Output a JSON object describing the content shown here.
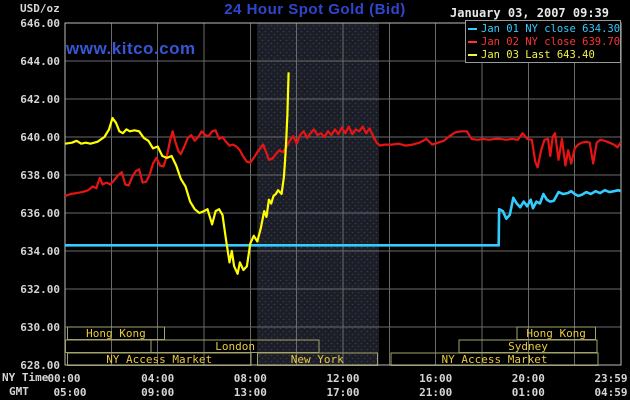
{
  "header": {
    "unit_label": "USD/oz",
    "title": "24 Hour Spot Gold (Bid)",
    "datetime": "January 03, 2007 09:39",
    "watermark": "www.kitco.com"
  },
  "legend": {
    "items": [
      {
        "label": "Jan 01 NY close 634.30",
        "color": "#33ccff"
      },
      {
        "label": "Jan 02 NY close 639.70",
        "color": "#ff3333"
      },
      {
        "label": "Jan 03 Last 643.40",
        "color": "#f2f24a"
      }
    ]
  },
  "axes": {
    "y_ticks": [
      "646.00",
      "644.00",
      "642.00",
      "640.00",
      "638.00",
      "636.00",
      "634.00",
      "632.00",
      "630.00",
      "628.00"
    ],
    "x_tick_hours": [
      0,
      4,
      8,
      12,
      16,
      20,
      23.98
    ],
    "rows": [
      {
        "title": "NY Time",
        "labels": [
          "00:00",
          "04:00",
          "08:00",
          "12:00",
          "16:00",
          "20:00",
          "23:59"
        ]
      },
      {
        "title": "GMT",
        "labels": [
          "05:00",
          "09:00",
          "13:00",
          "17:00",
          "21:00",
          "01:00",
          "04:59"
        ]
      }
    ]
  },
  "sessions": {
    "rows": [
      [
        {
          "label": "Hong Kong",
          "start": 0.1,
          "end": 4.3
        },
        {
          "label": "Hong Kong",
          "start": 19.5,
          "end": 22.9
        }
      ],
      [
        {
          "label": "",
          "start": 0.02,
          "end": 3.72
        },
        {
          "label": "London",
          "start": 3.72,
          "end": 10.97
        },
        {
          "label": "Sydney",
          "start": 17.0,
          "end": 22.97
        }
      ],
      [
        {
          "label": "NY Access Market",
          "start": 0.1,
          "end": 8.03
        },
        {
          "label": "New York",
          "start": 8.3,
          "end": 13.48
        },
        {
          "label": "NY Access Market",
          "start": 14.08,
          "end": 23.0
        }
      ]
    ]
  },
  "colors": {
    "background": "#000000",
    "grid": "#6a6a6a",
    "plot_border": "#bdbdbd",
    "title_blue": "#2f46cf",
    "watermark_blue": "#3656d6",
    "session_border": "#a3a369",
    "session_text": "#e8c93f",
    "band_fill": "#1c1e24",
    "band_dot": "#2f3a66",
    "tick_text": "#d6d6d6"
  },
  "chart_data": {
    "type": "line",
    "title": "24 Hour Spot Gold (Bid)",
    "ylabel": "USD/oz",
    "ylim": [
      628,
      646
    ],
    "y_step": 2,
    "xlim_hours": [
      0,
      24
    ],
    "x_step_hours": 2,
    "grid": true,
    "legend_position": "top-right",
    "highlight_band_hours": [
      8.29,
      13.55
    ],
    "series": [
      {
        "name": "Jan 01 NY close 634.30",
        "color": "#33ccff",
        "width": 2.6,
        "points": [
          [
            0,
            634.3
          ],
          [
            18.72,
            634.3
          ],
          [
            18.74,
            636.2
          ],
          [
            18.9,
            636.1
          ],
          [
            19.05,
            635.7
          ],
          [
            19.2,
            635.9
          ],
          [
            19.35,
            636.8
          ],
          [
            19.5,
            636.5
          ],
          [
            19.65,
            636.3
          ],
          [
            19.8,
            636.6
          ],
          [
            19.95,
            636.35
          ],
          [
            20.1,
            636.7
          ],
          [
            20.2,
            636.25
          ],
          [
            20.35,
            636.6
          ],
          [
            20.5,
            636.5
          ],
          [
            20.65,
            637.0
          ],
          [
            20.8,
            636.7
          ],
          [
            20.95,
            636.6
          ],
          [
            21.1,
            636.65
          ],
          [
            21.3,
            637.1
          ],
          [
            21.5,
            637.0
          ],
          [
            21.7,
            637.05
          ],
          [
            21.85,
            637.15
          ],
          [
            22.0,
            637.0
          ],
          [
            22.15,
            636.9
          ],
          [
            22.3,
            636.95
          ],
          [
            22.5,
            637.1
          ],
          [
            22.7,
            637.0
          ],
          [
            22.9,
            637.15
          ],
          [
            23.1,
            637.05
          ],
          [
            23.3,
            637.2
          ],
          [
            23.5,
            637.1
          ],
          [
            23.7,
            637.15
          ],
          [
            23.9,
            637.2
          ],
          [
            23.98,
            637.15
          ]
        ]
      },
      {
        "name": "Jan 02 NY close 639.70",
        "color": "#e81414",
        "width": 2.2,
        "points": [
          [
            0,
            636.9
          ],
          [
            0.25,
            637.0
          ],
          [
            0.5,
            637.05
          ],
          [
            0.75,
            637.1
          ],
          [
            1.0,
            637.2
          ],
          [
            1.2,
            637.4
          ],
          [
            1.35,
            637.3
          ],
          [
            1.5,
            637.85
          ],
          [
            1.62,
            637.5
          ],
          [
            1.8,
            637.6
          ],
          [
            1.95,
            637.5
          ],
          [
            2.1,
            637.7
          ],
          [
            2.3,
            638.0
          ],
          [
            2.45,
            638.15
          ],
          [
            2.6,
            637.5
          ],
          [
            2.75,
            637.45
          ],
          [
            2.9,
            637.9
          ],
          [
            3.05,
            638.2
          ],
          [
            3.2,
            638.3
          ],
          [
            3.35,
            637.6
          ],
          [
            3.5,
            637.65
          ],
          [
            3.65,
            638.0
          ],
          [
            3.8,
            638.6
          ],
          [
            3.95,
            638.9
          ],
          [
            4.1,
            638.5
          ],
          [
            4.25,
            638.45
          ],
          [
            4.4,
            639.0
          ],
          [
            4.55,
            639.9
          ],
          [
            4.65,
            640.3
          ],
          [
            4.75,
            639.8
          ],
          [
            4.9,
            639.25
          ],
          [
            5.0,
            639.1
          ],
          [
            5.15,
            639.5
          ],
          [
            5.3,
            639.95
          ],
          [
            5.45,
            640.1
          ],
          [
            5.6,
            639.8
          ],
          [
            5.75,
            640.0
          ],
          [
            5.9,
            640.3
          ],
          [
            6.05,
            640.1
          ],
          [
            6.2,
            640.05
          ],
          [
            6.35,
            640.3
          ],
          [
            6.5,
            640.35
          ],
          [
            6.65,
            639.9
          ],
          [
            6.8,
            640.0
          ],
          [
            6.95,
            639.75
          ],
          [
            7.1,
            639.55
          ],
          [
            7.25,
            639.6
          ],
          [
            7.4,
            639.5
          ],
          [
            7.55,
            639.3
          ],
          [
            7.7,
            638.95
          ],
          [
            7.85,
            638.7
          ],
          [
            8.0,
            638.65
          ],
          [
            8.15,
            638.9
          ],
          [
            8.3,
            639.2
          ],
          [
            8.45,
            639.45
          ],
          [
            8.55,
            639.6
          ],
          [
            8.65,
            639.3
          ],
          [
            8.8,
            638.8
          ],
          [
            8.95,
            638.85
          ],
          [
            9.1,
            639.1
          ],
          [
            9.25,
            639.3
          ],
          [
            9.4,
            639.2
          ],
          [
            9.55,
            639.45
          ],
          [
            9.7,
            639.8
          ],
          [
            9.85,
            640.05
          ],
          [
            10.0,
            639.65
          ],
          [
            10.15,
            640.1
          ],
          [
            10.3,
            640.3
          ],
          [
            10.45,
            639.95
          ],
          [
            10.6,
            640.2
          ],
          [
            10.75,
            640.4
          ],
          [
            10.9,
            640.1
          ],
          [
            11.05,
            640.2
          ],
          [
            11.2,
            640.0
          ],
          [
            11.35,
            640.3
          ],
          [
            11.5,
            640.1
          ],
          [
            11.65,
            640.4
          ],
          [
            11.8,
            640.15
          ],
          [
            11.95,
            640.5
          ],
          [
            12.1,
            640.2
          ],
          [
            12.25,
            640.55
          ],
          [
            12.4,
            640.15
          ],
          [
            12.55,
            640.4
          ],
          [
            12.7,
            640.3
          ],
          [
            12.85,
            640.55
          ],
          [
            13.0,
            640.2
          ],
          [
            13.15,
            640.45
          ],
          [
            13.3,
            640.05
          ],
          [
            13.45,
            639.7
          ],
          [
            13.6,
            639.55
          ],
          [
            13.8,
            639.6
          ],
          [
            14.1,
            639.6
          ],
          [
            14.4,
            639.65
          ],
          [
            14.7,
            639.55
          ],
          [
            15.0,
            639.6
          ],
          [
            15.3,
            639.7
          ],
          [
            15.6,
            639.9
          ],
          [
            15.85,
            639.6
          ],
          [
            16.1,
            639.7
          ],
          [
            16.35,
            639.8
          ],
          [
            16.6,
            640.05
          ],
          [
            16.85,
            640.25
          ],
          [
            17.1,
            640.3
          ],
          [
            17.35,
            640.3
          ],
          [
            17.55,
            639.9
          ],
          [
            17.8,
            639.85
          ],
          [
            18.05,
            639.9
          ],
          [
            18.3,
            639.85
          ],
          [
            18.55,
            639.9
          ],
          [
            18.8,
            639.9
          ],
          [
            19.05,
            639.85
          ],
          [
            19.3,
            639.9
          ],
          [
            19.55,
            639.85
          ],
          [
            19.75,
            640.2
          ],
          [
            19.95,
            639.9
          ],
          [
            20.15,
            639.85
          ],
          [
            20.3,
            638.7
          ],
          [
            20.4,
            638.4
          ],
          [
            20.55,
            639.3
          ],
          [
            20.7,
            639.85
          ],
          [
            20.85,
            639.9
          ],
          [
            20.95,
            639.0
          ],
          [
            21.05,
            640.0
          ],
          [
            21.15,
            640.2
          ],
          [
            21.3,
            638.8
          ],
          [
            21.45,
            639.9
          ],
          [
            21.6,
            638.5
          ],
          [
            21.72,
            639.3
          ],
          [
            21.85,
            638.6
          ],
          [
            22.0,
            639.4
          ],
          [
            22.15,
            639.6
          ],
          [
            22.3,
            639.7
          ],
          [
            22.5,
            639.75
          ],
          [
            22.65,
            639.7
          ],
          [
            22.8,
            638.6
          ],
          [
            22.95,
            639.7
          ],
          [
            23.1,
            639.85
          ],
          [
            23.3,
            639.8
          ],
          [
            23.5,
            639.7
          ],
          [
            23.7,
            639.6
          ],
          [
            23.85,
            639.45
          ],
          [
            23.98,
            639.7
          ]
        ]
      },
      {
        "name": "Jan 03 Last 643.40",
        "color": "#ffff00",
        "width": 2.2,
        "points": [
          [
            0,
            639.65
          ],
          [
            0.3,
            639.7
          ],
          [
            0.5,
            639.8
          ],
          [
            0.7,
            639.65
          ],
          [
            0.9,
            639.7
          ],
          [
            1.1,
            639.65
          ],
          [
            1.4,
            639.75
          ],
          [
            1.7,
            640.0
          ],
          [
            1.9,
            640.4
          ],
          [
            2.05,
            641.0
          ],
          [
            2.2,
            640.75
          ],
          [
            2.35,
            640.3
          ],
          [
            2.5,
            640.2
          ],
          [
            2.65,
            640.4
          ],
          [
            2.8,
            640.3
          ],
          [
            3.0,
            640.35
          ],
          [
            3.2,
            640.3
          ],
          [
            3.4,
            639.95
          ],
          [
            3.6,
            639.8
          ],
          [
            3.8,
            639.4
          ],
          [
            4.0,
            639.5
          ],
          [
            4.2,
            639.0
          ],
          [
            4.4,
            638.9
          ],
          [
            4.6,
            639.0
          ],
          [
            4.8,
            638.5
          ],
          [
            5.0,
            637.8
          ],
          [
            5.2,
            637.4
          ],
          [
            5.4,
            636.6
          ],
          [
            5.6,
            636.2
          ],
          [
            5.8,
            636.0
          ],
          [
            6.0,
            636.1
          ],
          [
            6.15,
            636.2
          ],
          [
            6.35,
            635.4
          ],
          [
            6.5,
            636.1
          ],
          [
            6.65,
            636.2
          ],
          [
            6.8,
            635.9
          ],
          [
            6.95,
            634.6
          ],
          [
            7.1,
            633.4
          ],
          [
            7.2,
            634.0
          ],
          [
            7.3,
            633.2
          ],
          [
            7.45,
            632.8
          ],
          [
            7.55,
            633.4
          ],
          [
            7.7,
            633.0
          ],
          [
            7.85,
            633.2
          ],
          [
            8.0,
            634.4
          ],
          [
            8.15,
            634.8
          ],
          [
            8.3,
            634.5
          ],
          [
            8.45,
            635.2
          ],
          [
            8.6,
            636.1
          ],
          [
            8.7,
            635.8
          ],
          [
            8.8,
            636.7
          ],
          [
            8.9,
            636.5
          ],
          [
            9.0,
            636.9
          ],
          [
            9.1,
            637.0
          ],
          [
            9.2,
            637.2
          ],
          [
            9.35,
            637.0
          ],
          [
            9.45,
            637.9
          ],
          [
            9.5,
            638.8
          ],
          [
            9.55,
            639.8
          ],
          [
            9.6,
            641.2
          ],
          [
            9.65,
            643.4
          ]
        ]
      }
    ]
  }
}
